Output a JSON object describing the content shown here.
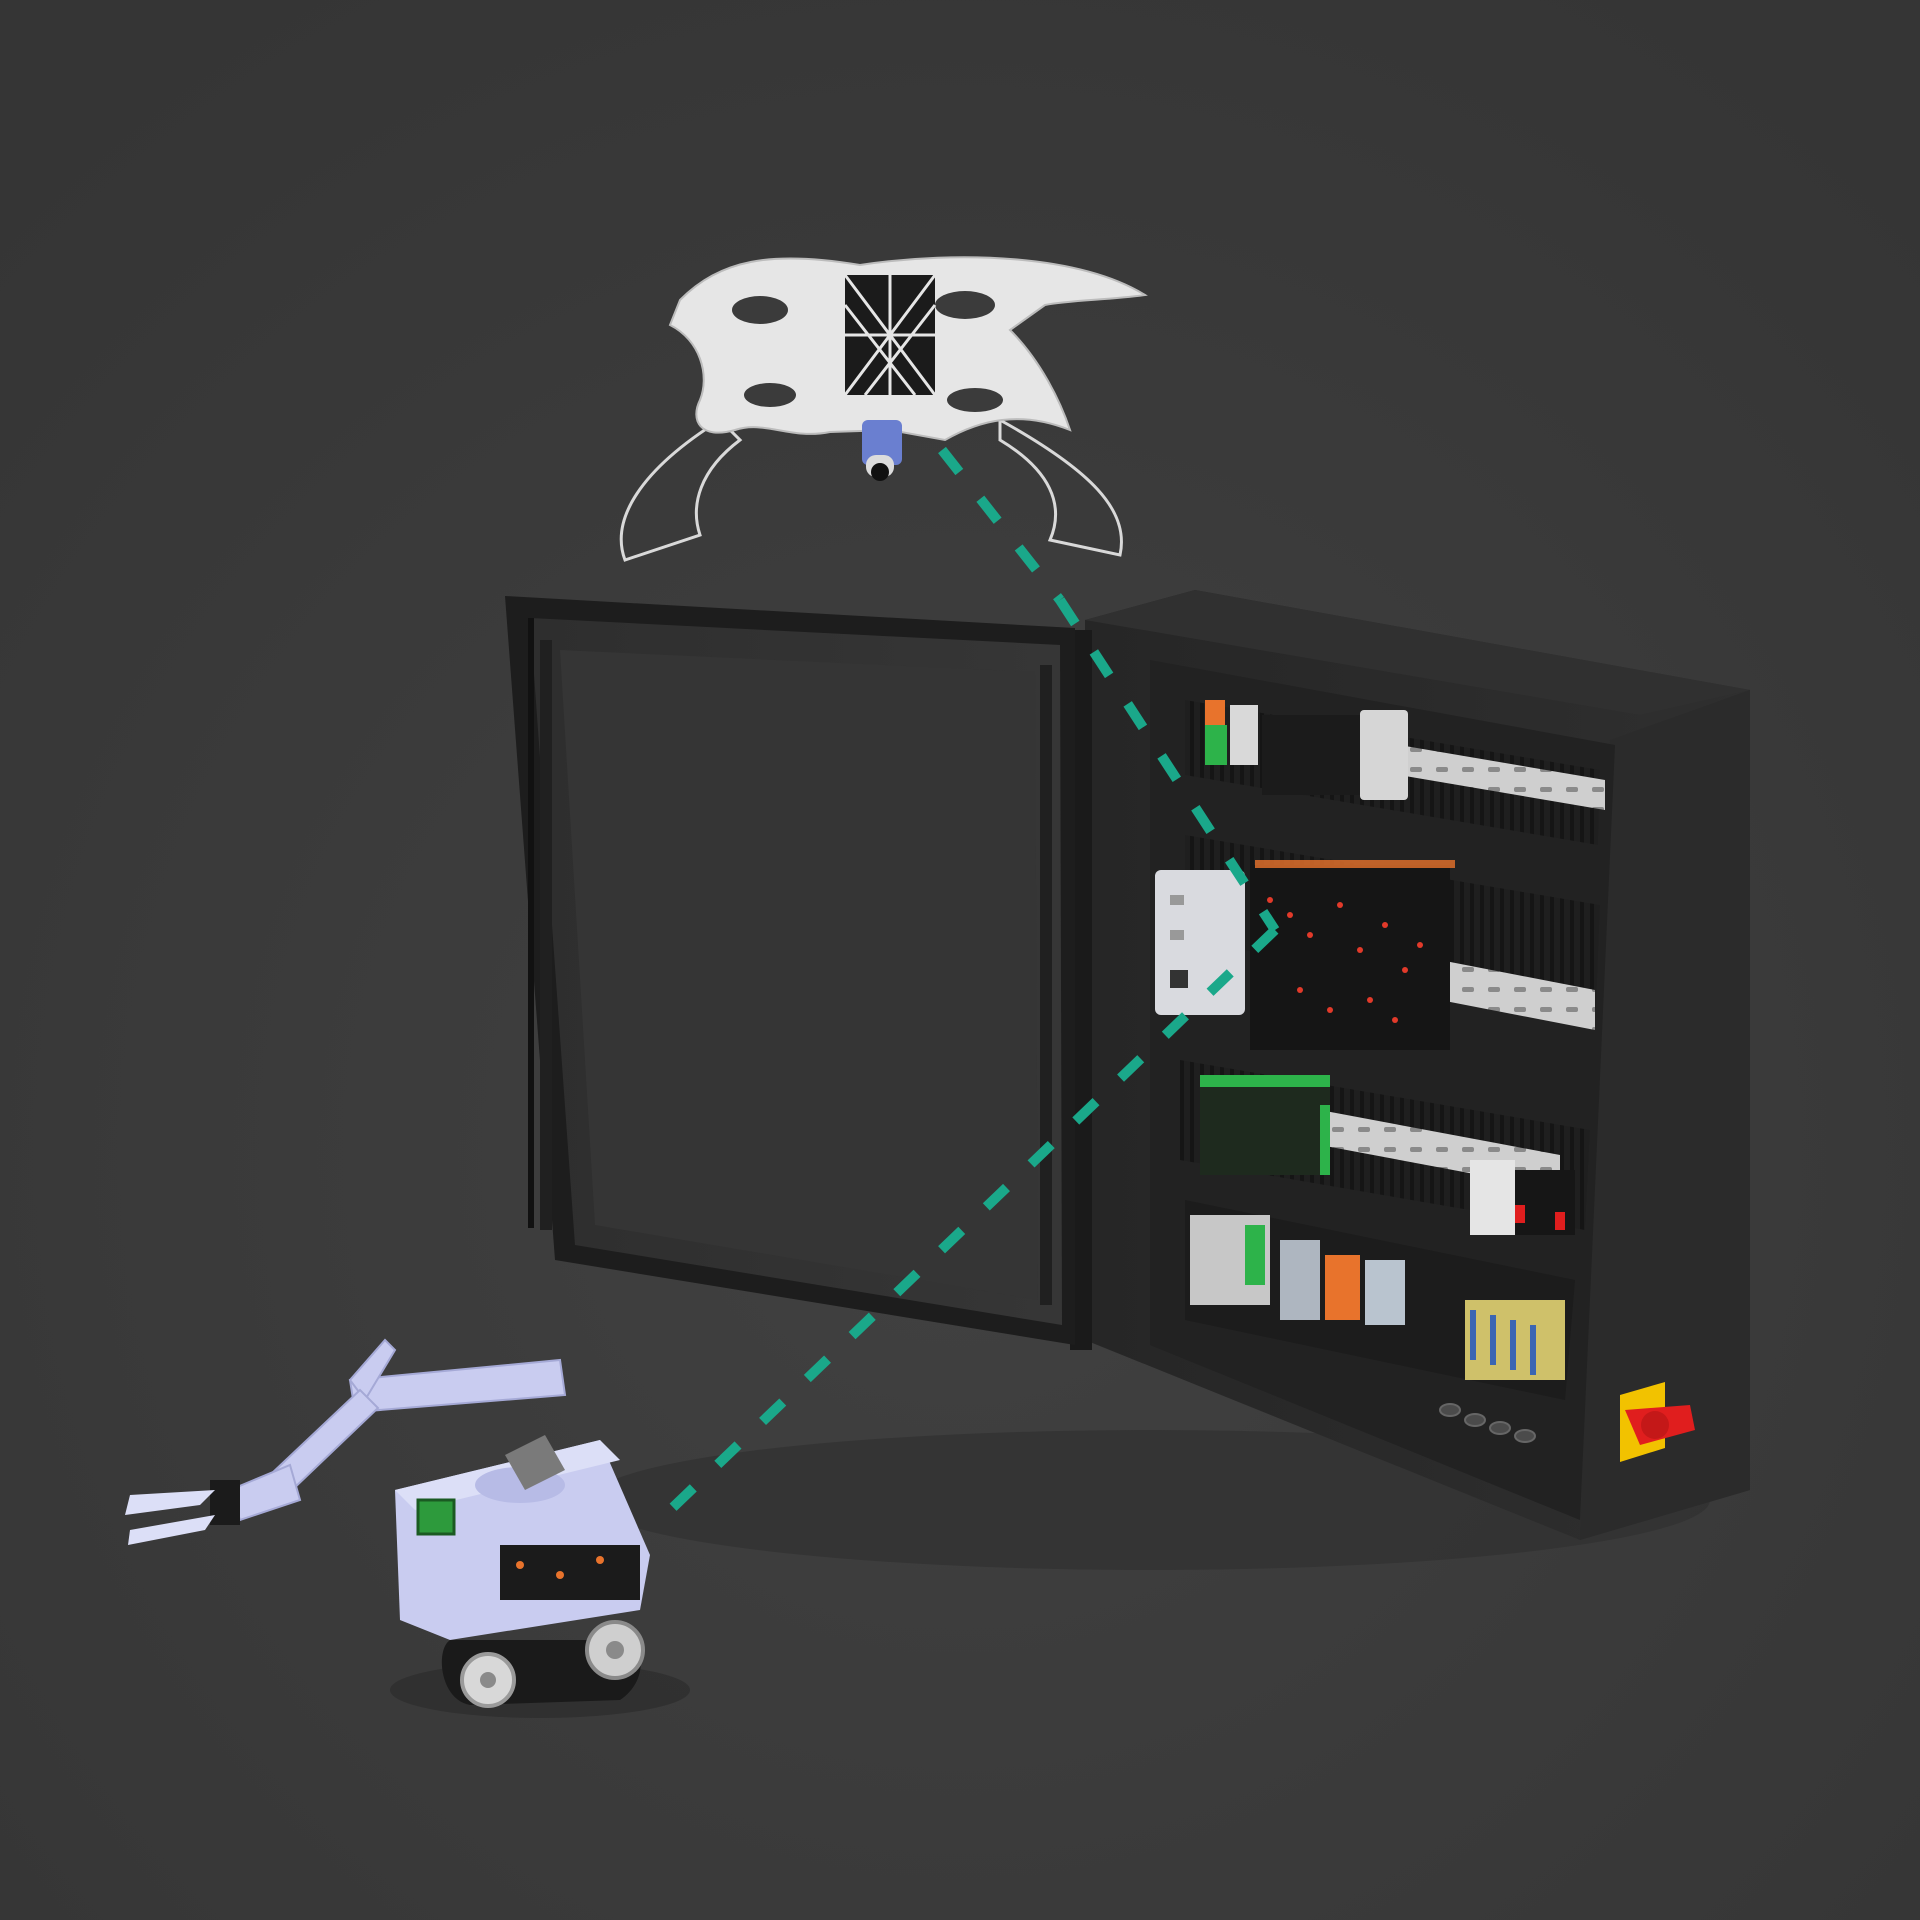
{
  "scene": {
    "objects": [
      {
        "name": "quadcopter-drone"
      },
      {
        "name": "electrical-control-cabinet"
      },
      {
        "name": "tracked-robot-arm"
      }
    ],
    "links": [
      {
        "from": "quadcopter-drone",
        "to": "electrical-control-cabinet",
        "style": "dashed"
      },
      {
        "from": "electrical-control-cabinet",
        "to": "tracked-robot-arm",
        "style": "dashed"
      }
    ]
  },
  "colors": {
    "background": "#3b3b3b",
    "link": "#1aa88a",
    "cabinet": "#2a2a2a",
    "drone": "#e6e6e6",
    "robot": "#c9ccf0",
    "switch": "#e01e1e",
    "switch_plate": "#f2c200",
    "module_green": "#2db34a",
    "module_orange": "#e8732c"
  }
}
